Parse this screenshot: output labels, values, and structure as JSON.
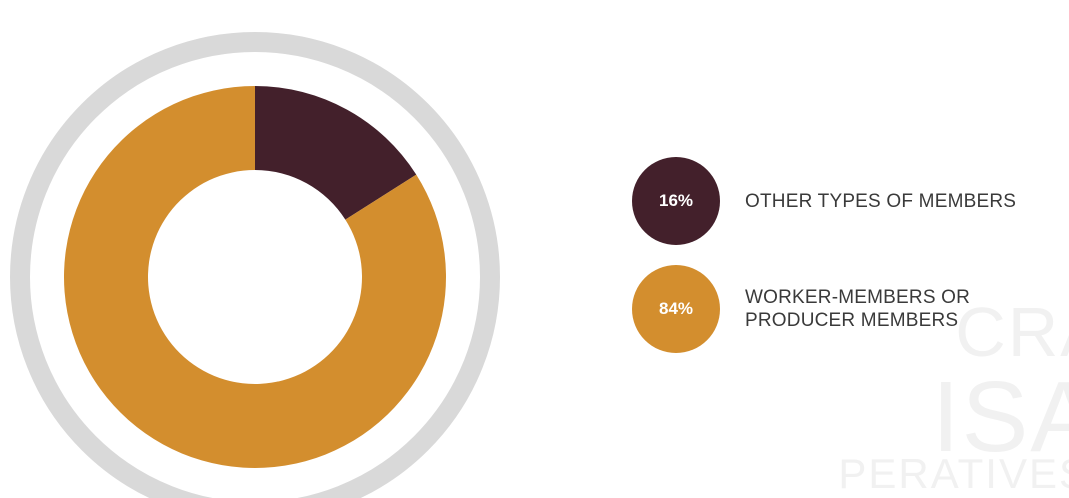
{
  "chart_data": {
    "type": "pie",
    "variant": "donut",
    "slices": [
      {
        "label": "OTHER TYPES OF MEMBERS",
        "value": 16,
        "display": "16%",
        "color": "#43202b"
      },
      {
        "label": "WORKER-MEMBERS OR\nPRODUCER MEMBERS",
        "value": 84,
        "display": "84%",
        "color": "#d38e2e"
      }
    ],
    "outer_ring_color": "#d9d9d9",
    "legend_position": "right"
  },
  "watermark": {
    "line1": "CRA",
    "line2": "ISA",
    "line3": "PERATIVES"
  }
}
